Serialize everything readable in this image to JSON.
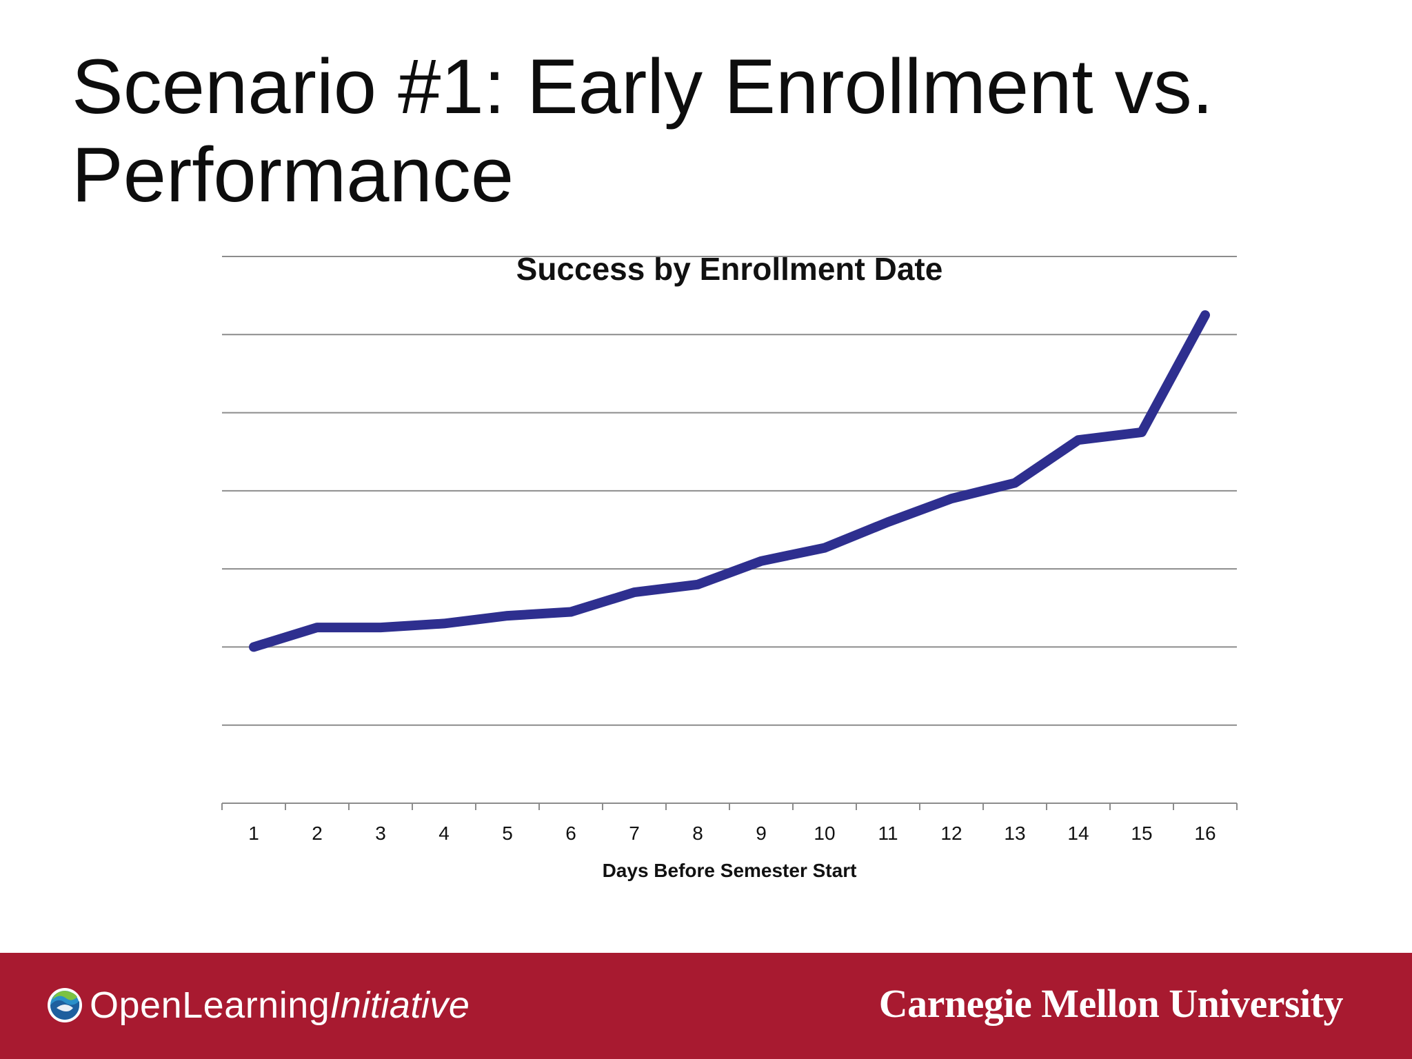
{
  "slide": {
    "title": "Scenario #1: Early Enrollment vs. Performance"
  },
  "chart_data": {
    "type": "line",
    "title": "Success by Enrollment Date",
    "xlabel": "Days Before Semester Start",
    "ylabel": "",
    "categories": [
      "1",
      "2",
      "3",
      "4",
      "5",
      "6",
      "7",
      "8",
      "9",
      "10",
      "11",
      "12",
      "13",
      "14",
      "15",
      "16"
    ],
    "series": [
      {
        "values": [
          2.0,
          2.25,
          2.25,
          2.3,
          2.4,
          2.45,
          2.7,
          2.8,
          3.1,
          3.27,
          3.6,
          3.9,
          4.1,
          4.65,
          4.75,
          6.25
        ]
      }
    ],
    "ylim": [
      0,
      7
    ],
    "y_gridlines": [
      1,
      2,
      3,
      4,
      5,
      6,
      7
    ],
    "y_tick_labels_shown": false,
    "grid": true,
    "legend": "none",
    "line_color": "#2e2f8f",
    "grid_color": "#8c8c8c"
  },
  "footer": {
    "background_color": "#a81a30",
    "left_logo_regular": "OpenLearning",
    "left_logo_italic": "Initiative",
    "right_logo": "Carnegie Mellon University"
  }
}
